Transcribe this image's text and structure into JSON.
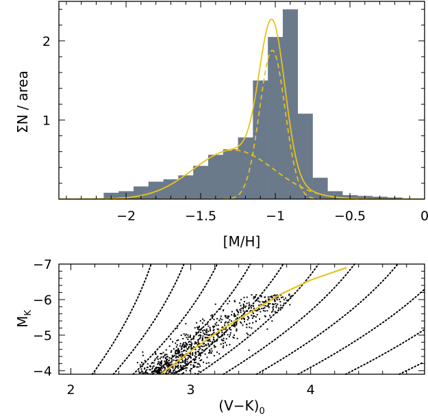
{
  "chart_data": [
    {
      "type": "bar",
      "xlabel": "[M/H]",
      "ylabel": "ΣN / area",
      "xlim": [
        -2.45,
        0.0
      ],
      "ylim": [
        0,
        2.5
      ],
      "xticks": [
        -2,
        -1.5,
        -1,
        -0.5,
        0
      ],
      "xtick_labels": [
        "−2",
        "−1.5",
        "−1",
        "−0.5",
        "0"
      ],
      "yticks": [
        1,
        2
      ],
      "ytick_labels": [
        "1",
        "2"
      ],
      "grid": false,
      "bin_width": 0.1,
      "bars": [
        {
          "x0": -2.15,
          "value": 0.08
        },
        {
          "x0": -2.05,
          "value": 0.1
        },
        {
          "x0": -1.95,
          "value": 0.16
        },
        {
          "x0": -1.85,
          "value": 0.22
        },
        {
          "x0": -1.75,
          "value": 0.25
        },
        {
          "x0": -1.65,
          "value": 0.3
        },
        {
          "x0": -1.55,
          "value": 0.42
        },
        {
          "x0": -1.45,
          "value": 0.56
        },
        {
          "x0": -1.35,
          "value": 0.63
        },
        {
          "x0": -1.25,
          "value": 0.78
        },
        {
          "x0": -1.15,
          "value": 1.5
        },
        {
          "x0": -1.05,
          "value": 2.05
        },
        {
          "x0": -0.95,
          "value": 2.4
        },
        {
          "x0": -0.85,
          "value": 1.08
        },
        {
          "x0": -0.75,
          "value": 0.27
        },
        {
          "x0": -0.65,
          "value": 0.1
        },
        {
          "x0": -0.55,
          "value": 0.05
        },
        {
          "x0": -0.45,
          "value": 0.04
        },
        {
          "x0": -0.35,
          "value": 0.03
        },
        {
          "x0": -0.25,
          "value": 0.02
        }
      ],
      "gaussian_components": [
        {
          "mean": -1.28,
          "sigma": 0.27,
          "amplitude": 0.62
        },
        {
          "mean": -1.02,
          "sigma": 0.085,
          "amplitude": 1.88
        }
      ],
      "colors": {
        "bars": "#6b7a8b",
        "curves": "#e8c21a",
        "axes": "#000000"
      }
    },
    {
      "type": "scatter",
      "xlabel": "(V−K)",
      "xlabel_sub": "0",
      "ylabel": "M",
      "ylabel_sub": "K",
      "xlim": [
        1.9,
        4.95
      ],
      "ylim": [
        -3.9,
        -7.0
      ],
      "y_inverted": true,
      "xticks": [
        2,
        3,
        4
      ],
      "xtick_labels": [
        "2",
        "3",
        "4"
      ],
      "yticks": [
        -4,
        -5,
        -6,
        -7
      ],
      "ytick_labels": [
        "−4",
        "−5",
        "−6",
        "−7"
      ],
      "grid": false,
      "tracks": {
        "description": "dotted model tracks",
        "anchors_at_MK_minus4": [
          2.2,
          2.38,
          2.55,
          2.72,
          2.9,
          3.1,
          3.32,
          3.6,
          3.95,
          4.35,
          4.8
        ],
        "offsets_at_MK_minus6": [
          0.35,
          0.42,
          0.5,
          0.58,
          0.65,
          0.72,
          0.78,
          0.84,
          0.9,
          0.95,
          1.0
        ]
      },
      "fit_line": {
        "x": [
          2.75,
          3.0,
          3.25,
          3.5,
          3.75,
          4.0,
          4.3
        ],
        "y": [
          -3.9,
          -4.55,
          -5.15,
          -5.65,
          -6.15,
          -6.55,
          -6.9
        ]
      },
      "star_cloud": {
        "count": 900,
        "x_range": [
          2.55,
          3.85
        ],
        "y_range": [
          -3.95,
          -6.15
        ]
      },
      "colors": {
        "points": "#000000",
        "fit_line": "#e8c21a",
        "tracks": "#000000"
      }
    }
  ]
}
